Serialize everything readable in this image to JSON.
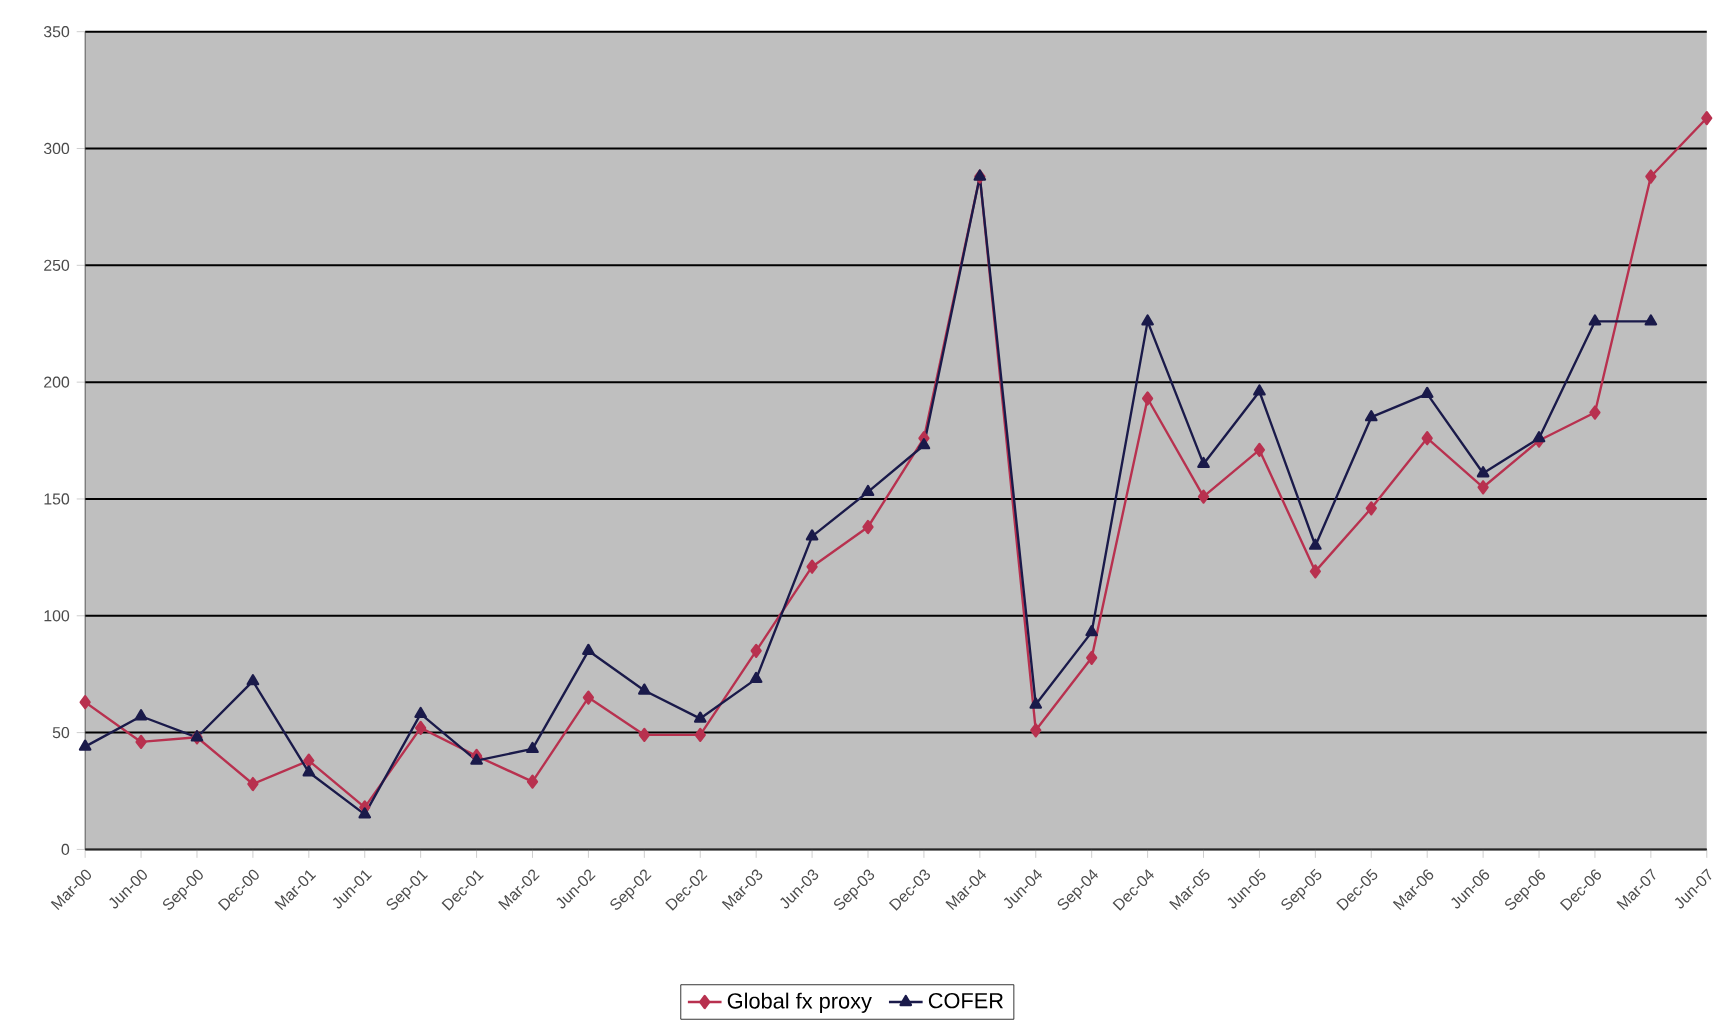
{
  "chart_data": {
    "type": "line",
    "categories": [
      "Mar-00",
      "Jun-00",
      "Sep-00",
      "Dec-00",
      "Mar-01",
      "Jun-01",
      "Sep-01",
      "Dec-01",
      "Mar-02",
      "Jun-02",
      "Sep-02",
      "Dec-02",
      "Mar-03",
      "Jun-03",
      "Sep-03",
      "Dec-03",
      "Mar-04",
      "Jun-04",
      "Sep-04",
      "Dec-04",
      "Mar-05",
      "Jun-05",
      "Sep-05",
      "Dec-05",
      "Mar-06",
      "Jun-06",
      "Sep-06",
      "Dec-06",
      "Mar-07",
      "Jun-07"
    ],
    "series": [
      {
        "name": "Global fx proxy",
        "color": "#b8314f",
        "marker": "diamond",
        "values": [
          63,
          46,
          48,
          28,
          38,
          18,
          52,
          40,
          29,
          65,
          49,
          49,
          85,
          121,
          138,
          176,
          288,
          51,
          82,
          193,
          151,
          171,
          119,
          146,
          176,
          155,
          175,
          187,
          288,
          313
        ]
      },
      {
        "name": "COFER",
        "color": "#1a1a4a",
        "marker": "triangle",
        "values": [
          44,
          57,
          48,
          72,
          33,
          15,
          58,
          38,
          43,
          85,
          68,
          56,
          73,
          134,
          153,
          173,
          288,
          62,
          93,
          226,
          165,
          196,
          130,
          185,
          195,
          161,
          176,
          226,
          226,
          null
        ]
      }
    ],
    "ylim": [
      0,
      350
    ],
    "yticks": [
      0,
      50,
      100,
      150,
      200,
      250,
      300,
      350
    ],
    "grid": "y",
    "legend": "bottom",
    "line_style": "solid"
  }
}
